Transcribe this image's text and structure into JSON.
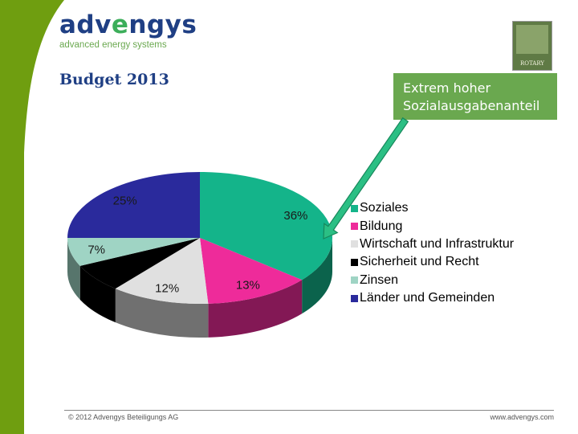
{
  "header": {
    "logo_name": "advengys",
    "logo_tagline": "advanced energy systems",
    "rotary_label": "ROTARY",
    "rotary_icon": "rotary-wheel-icon"
  },
  "callout": {
    "line1": "Extrem hoher",
    "line2": "Sozialausgabenanteil"
  },
  "colors": {
    "band": "#6f9e10",
    "brand_blue": "#1f3f84",
    "brand_green": "#3cae5a",
    "callout": "#6aa84f"
  },
  "chart_data": {
    "type": "pie",
    "title": "Budget 2013",
    "three_d": true,
    "start_angle_deg": 90,
    "direction": "clockwise",
    "slices": [
      {
        "label": "Soziales",
        "value": 36,
        "display": "36%",
        "color": "#14b48a"
      },
      {
        "label": "Bildung",
        "value": 13,
        "display": "13%",
        "color": "#ee2b9a"
      },
      {
        "label": "Wirtschaft und Infrastruktur",
        "value": 12,
        "display": "12%",
        "color": "#e0e0e0"
      },
      {
        "label": "Sicherheit und Recht",
        "value": 7,
        "display": "",
        "color": "#000000"
      },
      {
        "label": "Zinsen",
        "value": 7,
        "display": "7%",
        "color": "#9fd4c4"
      },
      {
        "label": "Länder und Gemeinden",
        "value": 25,
        "display": "25%",
        "color": "#2a2a9c"
      }
    ],
    "legend_placement": "right"
  },
  "footer": {
    "copyright": "© 2012 Advengys Beteiligungs AG",
    "url": "www.advengys.com"
  }
}
